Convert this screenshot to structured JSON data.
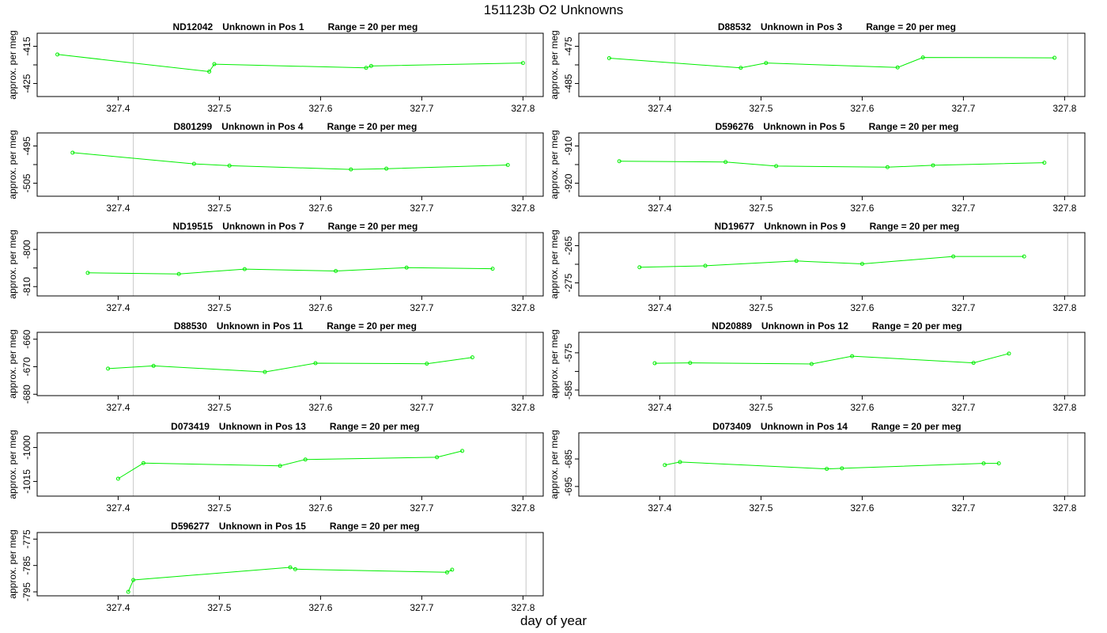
{
  "page": {
    "title": "151123b  O2 Unknowns",
    "xlabel": "day of year"
  },
  "chart_data": [
    {
      "type": "line",
      "sample": "ND12042",
      "position": "Unknown in Pos 1",
      "range": "Range = 20 per meg",
      "ylabel": "approx. per meg",
      "xlim": [
        327.32,
        327.82
      ],
      "ylim": [
        -428.5,
        -411.5
      ],
      "xticks": [
        327.4,
        327.5,
        327.6,
        327.7,
        327.8
      ],
      "yticks": [
        -415,
        -420,
        -425
      ],
      "ytick_labels": [
        "-415",
        "",
        "-425"
      ],
      "vlines": [
        327.415,
        327.803
      ],
      "series": [
        {
          "x": [
            327.34,
            327.49,
            327.495,
            327.645,
            327.65,
            327.8
          ],
          "y": [
            -417.2,
            -421.8,
            -419.8,
            -420.8,
            -420.3,
            -419.5
          ]
        }
      ]
    },
    {
      "type": "line",
      "sample": "D88532",
      "position": "Unknown in Pos 3",
      "range": "Range = 20 per meg",
      "ylabel": "approx. per meg",
      "xlim": [
        327.32,
        327.82
      ],
      "ylim": [
        -488.5,
        -471.5
      ],
      "xticks": [
        327.4,
        327.5,
        327.6,
        327.7,
        327.8
      ],
      "yticks": [
        -475,
        -480,
        -485
      ],
      "ytick_labels": [
        "-475",
        "",
        "-485"
      ],
      "vlines": [
        327.415,
        327.803
      ],
      "series": [
        {
          "x": [
            327.35,
            327.48,
            327.505,
            327.635,
            327.66,
            327.79
          ],
          "y": [
            -478.2,
            -480.8,
            -479.5,
            -480.7,
            -478.0,
            -478.1
          ]
        }
      ]
    },
    {
      "type": "line",
      "sample": "D801299",
      "position": "Unknown in Pos 4",
      "range": "Range = 20 per meg",
      "ylabel": "approx. per meg",
      "xlim": [
        327.32,
        327.82
      ],
      "ylim": [
        -508.5,
        -491.5
      ],
      "xticks": [
        327.4,
        327.5,
        327.6,
        327.7,
        327.8
      ],
      "yticks": [
        -495,
        -500,
        -505
      ],
      "ytick_labels": [
        "-495",
        "",
        "-505"
      ],
      "vlines": [
        327.415,
        327.803
      ],
      "series": [
        {
          "x": [
            327.355,
            327.475,
            327.51,
            327.63,
            327.665,
            327.785
          ],
          "y": [
            -496.8,
            -499.8,
            -500.3,
            -501.3,
            -501.1,
            -500.1
          ]
        }
      ]
    },
    {
      "type": "line",
      "sample": "D596276",
      "position": "Unknown in Pos 5",
      "range": "Range = 20 per meg",
      "ylabel": "approx. per meg",
      "xlim": [
        327.32,
        327.82
      ],
      "ylim": [
        -923.5,
        -906.5
      ],
      "xticks": [
        327.4,
        327.5,
        327.6,
        327.7,
        327.8
      ],
      "yticks": [
        -910,
        -915,
        -920
      ],
      "ytick_labels": [
        "-910",
        "",
        "-920"
      ],
      "vlines": [
        327.415,
        327.803
      ],
      "series": [
        {
          "x": [
            327.36,
            327.465,
            327.515,
            327.625,
            327.67,
            327.78
          ],
          "y": [
            -914.1,
            -914.3,
            -915.4,
            -915.7,
            -915.2,
            -914.5
          ]
        }
      ]
    },
    {
      "type": "line",
      "sample": "ND19515",
      "position": "Unknown in Pos 7",
      "range": "Range = 20 per meg",
      "ylabel": "approx. per meg",
      "xlim": [
        327.32,
        327.82
      ],
      "ylim": [
        -812.5,
        -795.5
      ],
      "xticks": [
        327.4,
        327.5,
        327.6,
        327.7,
        327.8
      ],
      "yticks": [
        -800,
        -805,
        -810
      ],
      "ytick_labels": [
        "-800",
        "",
        "-810"
      ],
      "vlines": [
        327.415,
        327.803
      ],
      "series": [
        {
          "x": [
            327.37,
            327.46,
            327.525,
            327.615,
            327.685,
            327.77
          ],
          "y": [
            -806.3,
            -806.6,
            -805.3,
            -805.8,
            -804.9,
            -805.2
          ]
        }
      ]
    },
    {
      "type": "line",
      "sample": "ND19677",
      "position": "Unknown in Pos 9",
      "range": "Range = 20 per meg",
      "ylabel": "approx. per meg",
      "xlim": [
        327.32,
        327.82
      ],
      "ylim": [
        -278.5,
        -261.5
      ],
      "xticks": [
        327.4,
        327.5,
        327.6,
        327.7,
        327.8
      ],
      "yticks": [
        -265,
        -270,
        -275
      ],
      "ytick_labels": [
        "-265",
        "",
        "-275"
      ],
      "vlines": [
        327.415,
        327.803
      ],
      "series": [
        {
          "x": [
            327.38,
            327.445,
            327.535,
            327.6,
            327.69,
            327.76
          ],
          "y": [
            -270.8,
            -270.4,
            -269.1,
            -269.9,
            -267.9,
            -267.9
          ]
        }
      ]
    },
    {
      "type": "line",
      "sample": "D88530",
      "position": "Unknown in Pos 11",
      "range": "Range = 20 per meg",
      "ylabel": "approx. per meg",
      "xlim": [
        327.32,
        327.82
      ],
      "ylim": [
        -680.5,
        -657.5
      ],
      "xticks": [
        327.4,
        327.5,
        327.6,
        327.7,
        327.8
      ],
      "yticks": [
        -660,
        -670,
        -680
      ],
      "ytick_labels": [
        "-660",
        "-670",
        "-680"
      ],
      "vlines": [
        327.415,
        327.803
      ],
      "series": [
        {
          "x": [
            327.39,
            327.435,
            327.545,
            327.595,
            327.705,
            327.75
          ],
          "y": [
            -670.7,
            -669.7,
            -671.9,
            -668.7,
            -668.9,
            -666.6
          ]
        }
      ]
    },
    {
      "type": "line",
      "sample": "ND20889",
      "position": "Unknown in Pos 12",
      "range": "Range = 20 per meg",
      "ylabel": "approx. per meg",
      "xlim": [
        327.32,
        327.82
      ],
      "ylim": [
        -586.5,
        -569.5
      ],
      "xticks": [
        327.4,
        327.5,
        327.6,
        327.7,
        327.8
      ],
      "yticks": [
        -575,
        -580,
        -585
      ],
      "ytick_labels": [
        "-575",
        "",
        "-585"
      ],
      "vlines": [
        327.415,
        327.803
      ],
      "series": [
        {
          "x": [
            327.395,
            327.43,
            327.55,
            327.59,
            327.71,
            327.745
          ],
          "y": [
            -577.8,
            -577.7,
            -578.0,
            -575.9,
            -577.7,
            -575.2
          ]
        }
      ]
    },
    {
      "type": "line",
      "sample": "D073419",
      "position": "Unknown in Pos 13",
      "range": "Range = 20 per meg",
      "ylabel": "approx. per meg",
      "xlim": [
        327.32,
        327.82
      ],
      "ylim": [
        -1021.5,
        -993.5
      ],
      "xticks": [
        327.4,
        327.5,
        327.6,
        327.7,
        327.8
      ],
      "yticks": [
        -1000,
        -1015
      ],
      "ytick_labels": [
        "-1000",
        "-1015"
      ],
      "vlines": [
        327.415,
        327.803
      ],
      "series": [
        {
          "x": [
            327.4,
            327.425,
            327.56,
            327.585,
            327.715,
            327.74
          ],
          "y": [
            -1013.8,
            -1006.9,
            -1008.1,
            -1005.3,
            -1004.3,
            -1001.5
          ]
        }
      ]
    },
    {
      "type": "line",
      "sample": "D073409",
      "position": "Unknown in Pos 14",
      "range": "Range = 20 per meg",
      "ylabel": "approx. per meg",
      "xlim": [
        327.32,
        327.82
      ],
      "ylim": [
        -698.5,
        -675.5
      ],
      "xticks": [
        327.4,
        327.5,
        327.6,
        327.7,
        327.8
      ],
      "yticks": [
        -685,
        -695
      ],
      "ytick_labels": [
        "-685",
        "-695"
      ],
      "vlines": [
        327.415,
        327.803
      ],
      "series": [
        {
          "x": [
            327.405,
            327.42,
            327.565,
            327.58,
            327.72,
            327.735
          ],
          "y": [
            -687.2,
            -686.1,
            -688.6,
            -688.4,
            -686.6,
            -686.6
          ]
        }
      ]
    },
    {
      "type": "line",
      "sample": "D596277",
      "position": "Unknown in Pos 15",
      "range": "Range = 20 per meg",
      "ylabel": "approx. per meg",
      "xlim": [
        327.32,
        327.82
      ],
      "ylim": [
        -796.5,
        -772.5
      ],
      "xticks": [
        327.4,
        327.5,
        327.6,
        327.7,
        327.8
      ],
      "yticks": [
        -775,
        -785,
        -795
      ],
      "ytick_labels": [
        "-775",
        "-785",
        "-795"
      ],
      "vlines": [
        327.415,
        327.803
      ],
      "series": [
        {
          "x": [
            327.41,
            327.415,
            327.57,
            327.575,
            327.725,
            327.73
          ],
          "y": [
            -795.0,
            -790.5,
            -785.7,
            -786.4,
            -787.6,
            -786.6
          ]
        }
      ]
    }
  ]
}
